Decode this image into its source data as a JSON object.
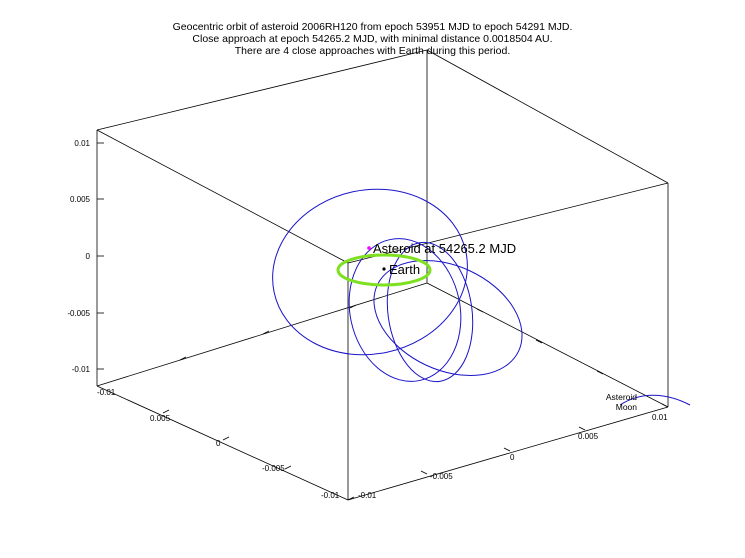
{
  "chart_data": {
    "type": "line",
    "title_lines": [
      "Geocentric orbit of asteroid 2006RH120 from epoch 53951 MJD to epoch 54291 MJD.",
      "Close approach at epoch 54265.2 MJD, with minimal distance 0.0018504 AU.",
      "There are 4 close approaches with Earth during this period."
    ],
    "z_ticks": [
      "0.01",
      "0.005",
      "0",
      "-0.005",
      "-0.01"
    ],
    "left_axis_ticks": [
      "-0.01",
      "0.005",
      "0",
      "-0.005",
      "-0.01"
    ],
    "right_axis_ticks": [
      "-0.01",
      "-0.005",
      "0",
      "0.005",
      "0.01"
    ],
    "annotations": {
      "asteroid": "Asteroid at 54265.2 MJD",
      "earth": "Earth"
    },
    "legend": [
      {
        "name": "Asteroid",
        "color": "#1a14c8"
      },
      {
        "name": "Moon",
        "color": "#7ee020"
      }
    ],
    "colors": {
      "asteroid": "#1a14c8",
      "moon": "#7ee020",
      "asteroid_point": "#ff00ff",
      "box": "#000000"
    },
    "axis_range": [
      -0.01,
      0.01
    ],
    "grid": false
  }
}
